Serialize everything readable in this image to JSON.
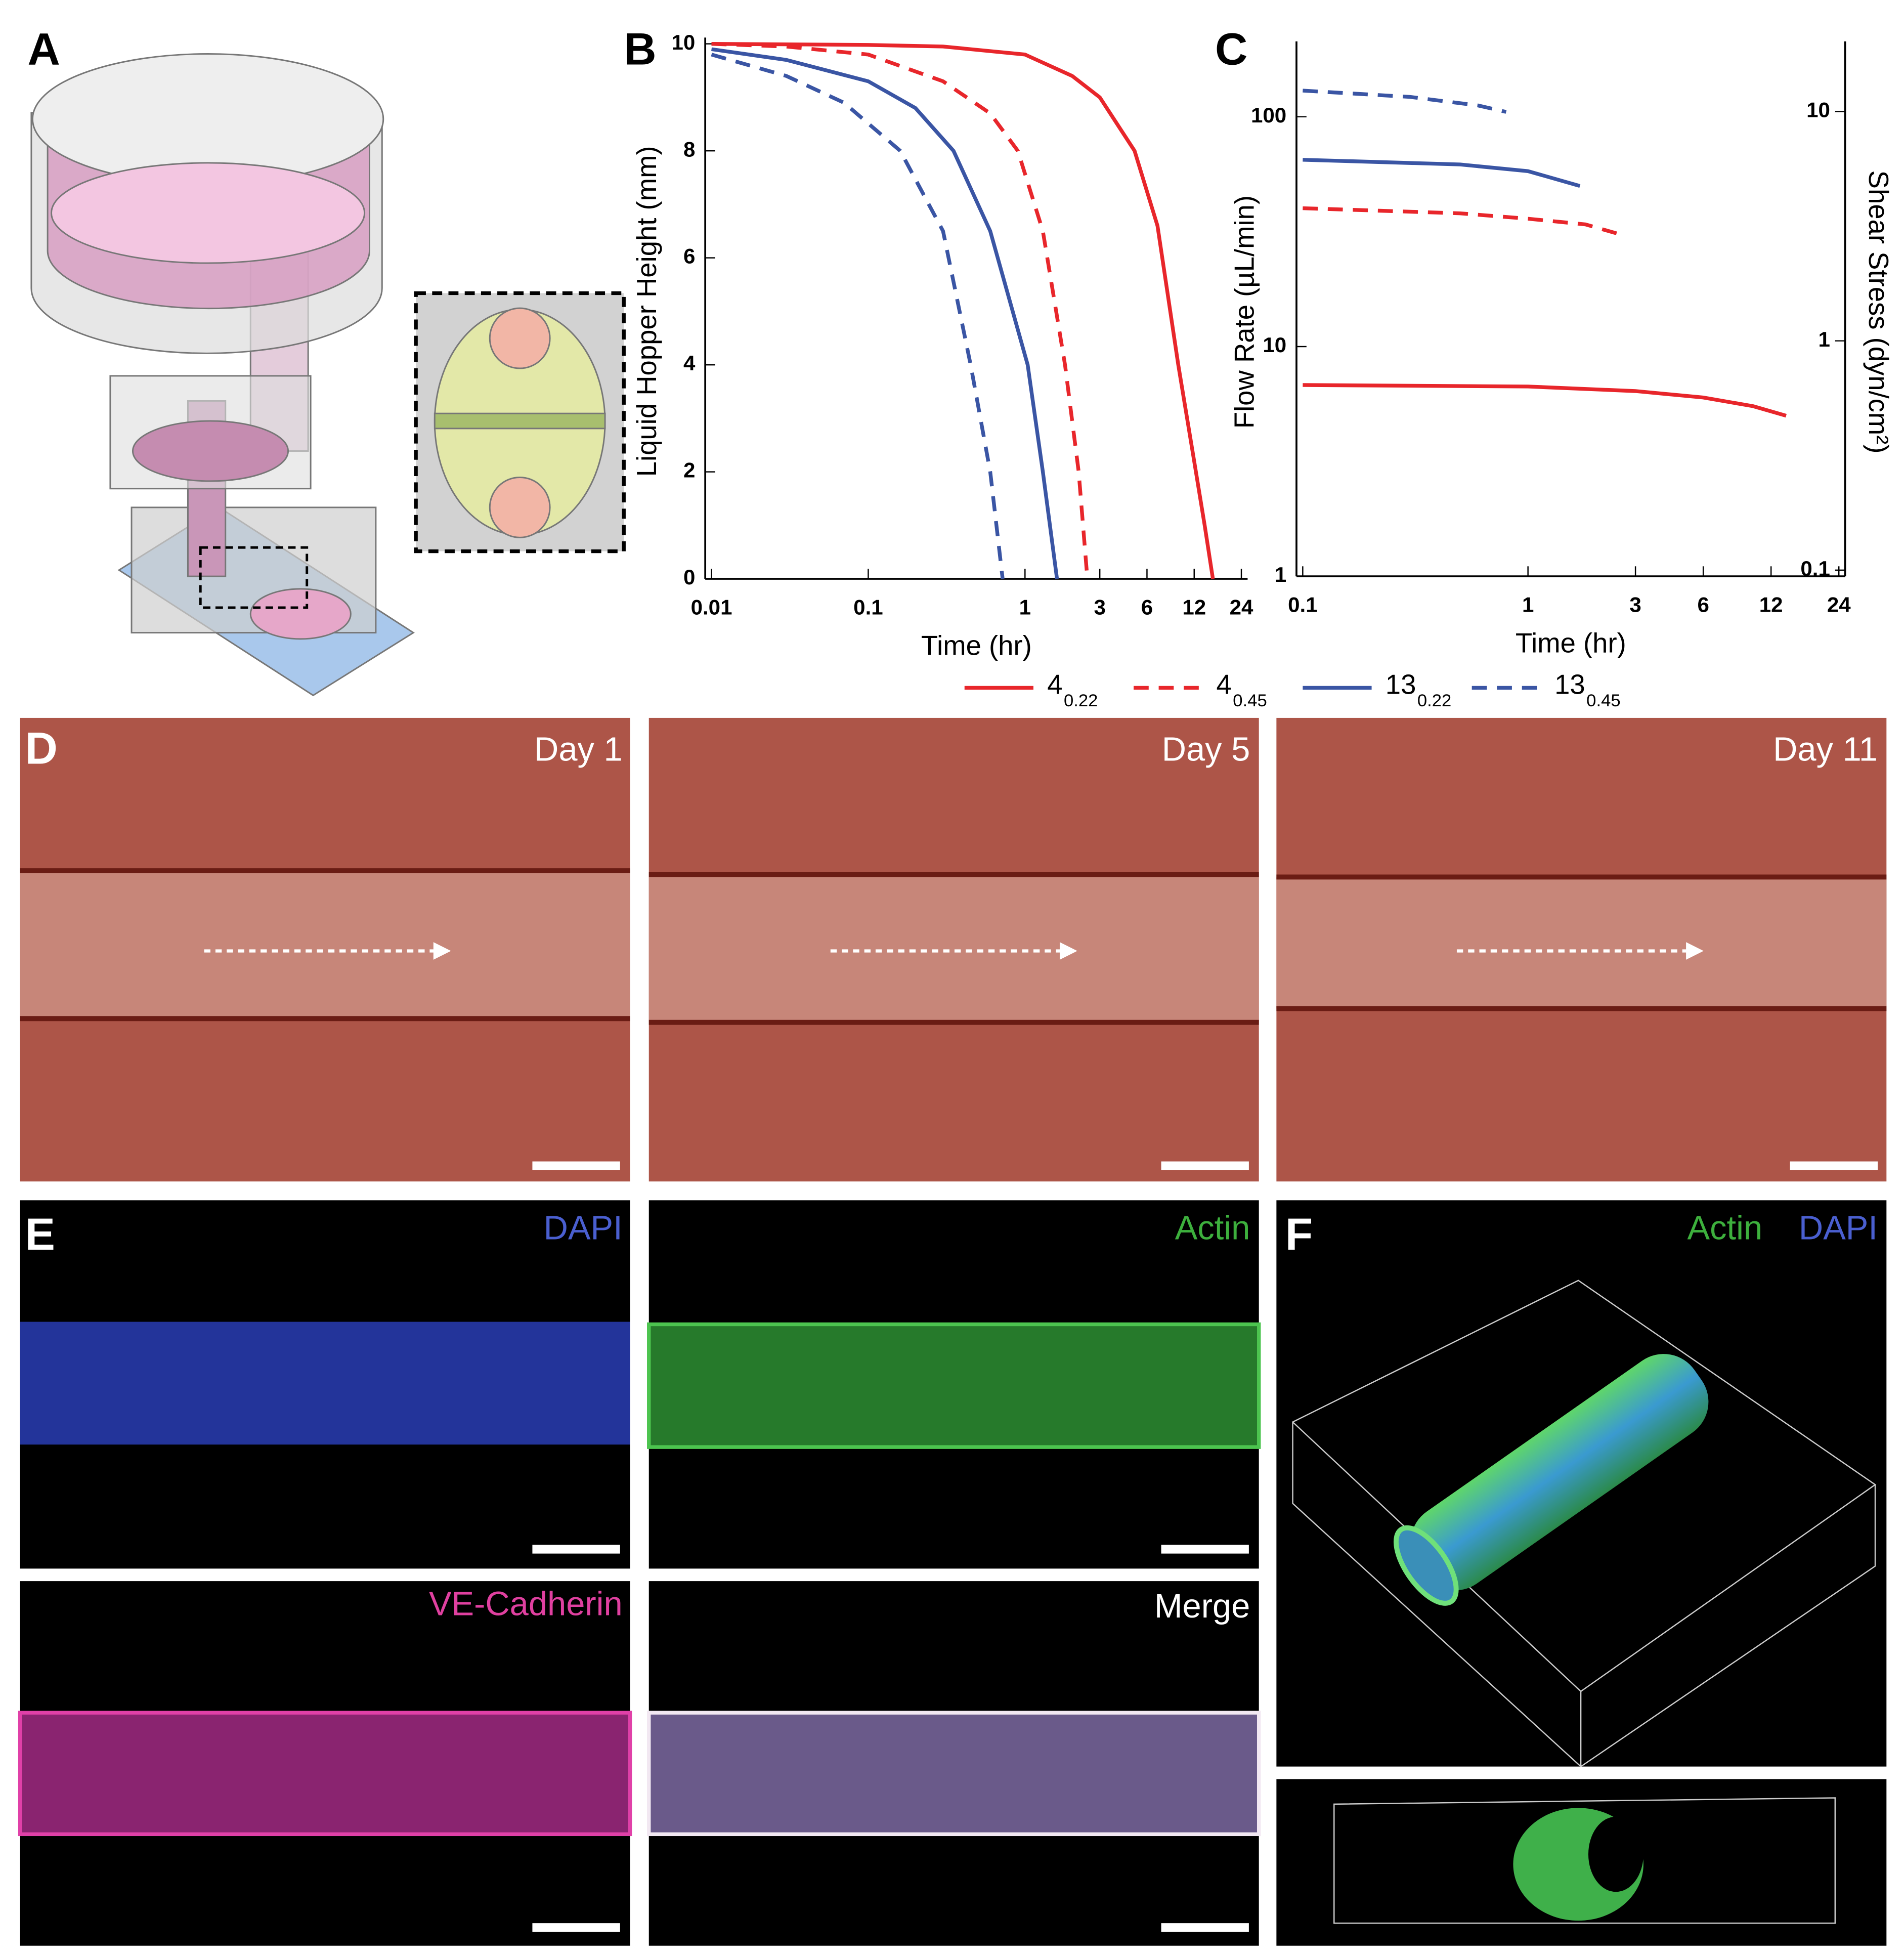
{
  "panels": {
    "labels": [
      "A",
      "B",
      "C",
      "D",
      "E",
      "F"
    ],
    "D": [
      "Day 1",
      "Day 5",
      "Day 11"
    ],
    "E": [
      "DAPI",
      "Actin",
      "VE-Cadherin",
      "Merge"
    ],
    "F": [
      "Actin",
      "DAPI"
    ]
  },
  "chart_data": [
    {
      "type": "line",
      "xlabel": "Time (hr)",
      "ylabel": "Liquid Hopper Height (mm)",
      "xscale": "log",
      "xlim": [
        0.01,
        24
      ],
      "xticks": [
        0.01,
        0.1,
        1,
        3,
        6,
        12,
        24
      ],
      "ylim": [
        0,
        10
      ],
      "yticks": [
        0,
        2,
        4,
        6,
        8,
        10
      ],
      "series": [
        {
          "name": "4",
          "subscript": "0.22",
          "color": "#e8262b",
          "dashed": false,
          "x": [
            0.01,
            0.1,
            0.3,
            1,
            2,
            3,
            5,
            7,
            9.5,
            12,
            14,
            15.8
          ],
          "values": [
            10,
            9.98,
            9.95,
            9.8,
            9.4,
            9.0,
            8.0,
            6.6,
            4.0,
            2.2,
            1.0,
            0
          ]
        },
        {
          "name": "4",
          "subscript": "0.45",
          "color": "#e8262b",
          "dashed": true,
          "x": [
            0.01,
            0.03,
            0.1,
            0.3,
            0.6,
            0.9,
            1.3,
            1.8,
            2.2,
            2.5
          ],
          "values": [
            10,
            9.95,
            9.8,
            9.3,
            8.7,
            8,
            6.5,
            4,
            2,
            0
          ]
        },
        {
          "name": "13",
          "subscript": "0.22",
          "color": "#3a55a4",
          "dashed": false,
          "x": [
            0.01,
            0.03,
            0.1,
            0.2,
            0.35,
            0.6,
            1.04,
            1.3,
            1.6
          ],
          "values": [
            9.9,
            9.7,
            9.3,
            8.8,
            8,
            6.5,
            4,
            2,
            0
          ]
        },
        {
          "name": "13",
          "subscript": "0.45",
          "color": "#3a55a4",
          "dashed": true,
          "x": [
            0.01,
            0.03,
            0.07,
            0.16,
            0.3,
            0.45,
            0.6,
            0.72
          ],
          "values": [
            9.8,
            9.4,
            8.9,
            8,
            6.5,
            4,
            2,
            0
          ]
        }
      ]
    },
    {
      "type": "line",
      "xlabel": "Time (hr)",
      "ylabel": "Flow Rate (µL/min)",
      "y2label": "Shear Stress (dyn/cm²)",
      "xscale": "log",
      "yscale": "log",
      "y2scale": "log",
      "xlim": [
        0.1,
        24
      ],
      "xticks": [
        0.1,
        1,
        3,
        6,
        12,
        24
      ],
      "ylim": [
        1,
        200
      ],
      "yticks": [
        1,
        10,
        100
      ],
      "y2lim": [
        0.094,
        19
      ],
      "y2ticks": [
        0.1,
        1,
        10
      ],
      "series": [
        {
          "color": "#e8262b",
          "dashed": false,
          "x": [
            0.1,
            1,
            3,
            6,
            10,
            14
          ],
          "values": [
            6.8,
            6.7,
            6.4,
            6.0,
            5.5,
            5.0
          ]
        },
        {
          "color": "#e8262b",
          "dashed": true,
          "x": [
            0.1,
            0.5,
            1,
            1.8,
            2.5
          ],
          "values": [
            40,
            38,
            36,
            34,
            31
          ]
        },
        {
          "color": "#3a55a4",
          "dashed": false,
          "x": [
            0.1,
            0.5,
            1,
            1.7
          ],
          "values": [
            65,
            62,
            58,
            50
          ]
        },
        {
          "color": "#3a55a4",
          "dashed": true,
          "x": [
            0.1,
            0.3,
            0.6,
            0.8
          ],
          "values": [
            130,
            122,
            112,
            105
          ]
        }
      ]
    }
  ]
}
